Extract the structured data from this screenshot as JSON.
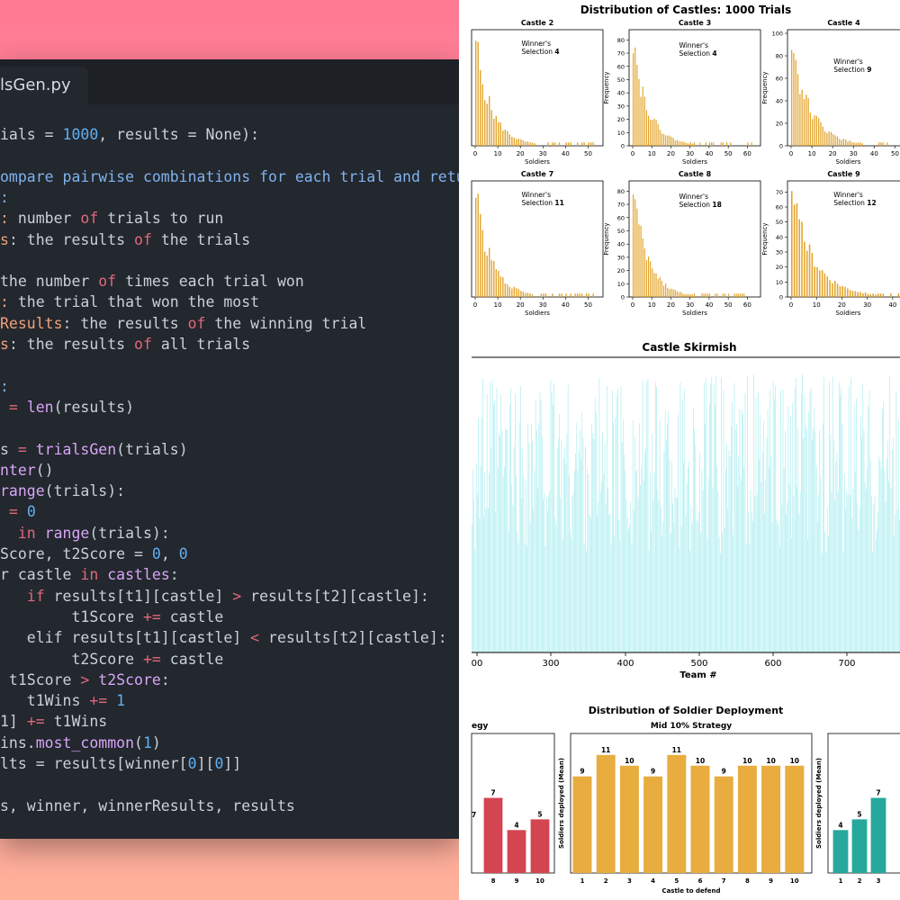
{
  "editor": {
    "tab_label": "lsGen.py",
    "lines": [
      {
        "segs": [
          [
            "pl",
            "ials = "
          ],
          [
            "num",
            "1000"
          ],
          [
            "pl",
            ", results = None):"
          ]
        ]
      },
      {
        "segs": []
      },
      {
        "segs": [
          [
            "dc",
            "ompare pairwise combinations for each trial and retu"
          ]
        ]
      },
      {
        "segs": [
          [
            "dc",
            ":"
          ]
        ]
      },
      {
        "segs": [
          [
            "pr",
            ": "
          ],
          [
            "pl",
            "number "
          ],
          [
            "kw",
            "of"
          ],
          [
            "pl",
            " trials to run"
          ]
        ]
      },
      {
        "segs": [
          [
            "pr",
            "s"
          ],
          [
            "pl",
            ": the results "
          ],
          [
            "kw",
            "of"
          ],
          [
            "pl",
            " the trials"
          ]
        ]
      },
      {
        "segs": []
      },
      {
        "segs": [
          [
            "pl",
            "the number "
          ],
          [
            "kw",
            "of"
          ],
          [
            "pl",
            " times each trial won"
          ]
        ]
      },
      {
        "segs": [
          [
            "pr",
            ": "
          ],
          [
            "pl",
            "the trial that won the most"
          ]
        ]
      },
      {
        "segs": [
          [
            "pr",
            "Results"
          ],
          [
            "pl",
            ": the results "
          ],
          [
            "kw",
            "of"
          ],
          [
            "pl",
            " the winning trial"
          ]
        ]
      },
      {
        "segs": [
          [
            "pr",
            "s"
          ],
          [
            "pl",
            ": the results "
          ],
          [
            "kw",
            "of"
          ],
          [
            "pl",
            " all trials"
          ]
        ]
      },
      {
        "segs": []
      },
      {
        "segs": [
          [
            "dc",
            ":"
          ]
        ]
      },
      {
        "segs": [
          [
            "op",
            " = "
          ],
          [
            "fn",
            "len"
          ],
          [
            "pl",
            "(results)"
          ]
        ]
      },
      {
        "segs": []
      },
      {
        "segs": [
          [
            "pl",
            "s "
          ],
          [
            "op",
            "="
          ],
          [
            "fn",
            " trialsGen"
          ],
          [
            "pl",
            "(trials)"
          ]
        ]
      },
      {
        "segs": [
          [
            "fn",
            "nter"
          ],
          [
            "pl",
            "()"
          ]
        ]
      },
      {
        "segs": [
          [
            "fn",
            "range"
          ],
          [
            "pl",
            "(trials):"
          ]
        ]
      },
      {
        "segs": [
          [
            "op",
            " = "
          ],
          [
            "num",
            "0"
          ]
        ]
      },
      {
        "segs": [
          [
            "kw",
            "  in "
          ],
          [
            "fn",
            "range"
          ],
          [
            "pl",
            "(trials):"
          ]
        ]
      },
      {
        "segs": [
          [
            "pl",
            "Score, t2Score = "
          ],
          [
            "num",
            "0"
          ],
          [
            "pl",
            ", "
          ],
          [
            "num",
            "0"
          ]
        ]
      },
      {
        "segs": [
          [
            "pl",
            "r castle "
          ],
          [
            "kw",
            "in"
          ],
          [
            "fn",
            " castles"
          ],
          [
            "pl",
            ":"
          ]
        ]
      },
      {
        "segs": [
          [
            "kw",
            "   if"
          ],
          [
            "pl",
            " results[t1][castle] "
          ],
          [
            "op",
            ">"
          ],
          [
            "pl",
            " results[t2][castle]:"
          ]
        ]
      },
      {
        "segs": [
          [
            "pl",
            "        t1Score "
          ],
          [
            "op",
            "+="
          ],
          [
            "pl",
            " castle"
          ]
        ]
      },
      {
        "segs": [
          [
            "pl",
            "   elif results[t1][castle] "
          ],
          [
            "op",
            "<"
          ],
          [
            "pl",
            " results[t2][castle]:"
          ]
        ]
      },
      {
        "segs": [
          [
            "pl",
            "        t2Score "
          ],
          [
            "op",
            "+="
          ],
          [
            "pl",
            " castle"
          ]
        ]
      },
      {
        "segs": [
          [
            "pl",
            " t1Score "
          ],
          [
            "op",
            ">"
          ],
          [
            "fn",
            " t2Score"
          ],
          [
            "pl",
            ":"
          ]
        ]
      },
      {
        "segs": [
          [
            "pl",
            "   t1Wins "
          ],
          [
            "op",
            "+="
          ],
          [
            "num",
            " 1"
          ]
        ]
      },
      {
        "segs": [
          [
            "pl",
            "1] "
          ],
          [
            "op",
            "+="
          ],
          [
            "pl",
            " t1Wins"
          ]
        ]
      },
      {
        "segs": [
          [
            "pl",
            "ins."
          ],
          [
            "fn",
            "most_common"
          ],
          [
            "pl",
            "("
          ],
          [
            "num",
            "1"
          ],
          [
            "pl",
            ")"
          ]
        ]
      },
      {
        "segs": [
          [
            "pl",
            "lts = results[winner["
          ],
          [
            "num",
            "0"
          ],
          [
            "pl",
            "]["
          ],
          [
            "num",
            "0"
          ],
          [
            "pl",
            "]]"
          ]
        ]
      },
      {
        "segs": []
      },
      {
        "segs": [
          [
            "pl",
            "s, winner, winnerResults, results"
          ]
        ]
      }
    ]
  },
  "figure1": {
    "title": "Distribution of Castles: 1000 Trials",
    "xlabel": "Soldiers",
    "ylabel": "Frequency",
    "panels": [
      {
        "title": "Castle 2",
        "winner": "4",
        "xticks": [
          "0",
          "10",
          "20",
          "30",
          "40",
          "50"
        ],
        "yticks": [],
        "max": 0
      },
      {
        "title": "Castle 3",
        "winner": "4",
        "xticks": [
          "0",
          "10",
          "20",
          "30",
          "40",
          "50",
          "60"
        ],
        "yticks": [
          "0",
          "10",
          "20",
          "30",
          "40",
          "50",
          "60",
          "70",
          "80"
        ],
        "max": 85
      },
      {
        "title": "Castle 4",
        "winner": "9",
        "xticks": [
          "0",
          "10",
          "20",
          "30",
          "40",
          "50"
        ],
        "yticks": [
          "0",
          "20",
          "40",
          "60",
          "80",
          "100"
        ],
        "max": 100
      },
      {
        "title": "Castle 7",
        "winner": "11",
        "xticks": [
          "0",
          "10",
          "20",
          "30",
          "40",
          "50"
        ],
        "yticks": [],
        "max": 0
      },
      {
        "title": "Castle 8",
        "winner": "18",
        "xticks": [
          "0",
          "10",
          "20",
          "30",
          "40",
          "50",
          "60"
        ],
        "yticks": [
          "0",
          "10",
          "20",
          "30",
          "40",
          "50",
          "60",
          "70",
          "80"
        ],
        "max": 85
      },
      {
        "title": "Castle 9",
        "winner": "12",
        "xticks": [
          "0",
          "10",
          "20",
          "30",
          "40"
        ],
        "yticks": [
          "0",
          "10",
          "20",
          "30",
          "40",
          "50",
          "60",
          "70"
        ],
        "max": 75
      }
    ],
    "winner_label": "Winner's",
    "selection_label": "Selection"
  },
  "figure2": {
    "title": "Castle Skirmish",
    "xlabel": "Team #",
    "xticks": [
      "00",
      "300",
      "400",
      "500",
      "600",
      "700"
    ],
    "color": "#aeeef0"
  },
  "figure3": {
    "title": "Distribution of Soldier Deployment",
    "panel_left_title": "egy",
    "panel_mid_title": "Mid 10% Strategy",
    "ylabel": "Soldiers deployed (Mean)",
    "xlabel": "Castle to defend",
    "left_bars": {
      "categories": [
        "8",
        "9",
        "10"
      ],
      "values": [
        7,
        4,
        5
      ],
      "partial_label": "7",
      "color": "#d44552"
    },
    "mid_bars": {
      "categories": [
        "1",
        "2",
        "3",
        "4",
        "5",
        "6",
        "7",
        "8",
        "9",
        "10"
      ],
      "values": [
        9,
        11,
        10,
        9,
        11,
        10,
        9,
        10,
        10,
        10
      ],
      "color": "#e8ac3f"
    },
    "right_bars": {
      "categories": [
        "1",
        "2",
        "3"
      ],
      "values": [
        4,
        5,
        7
      ],
      "color": "#26a89d"
    }
  },
  "chart_data": [
    {
      "type": "bar",
      "title": "Castle 3",
      "xlabel": "Soldiers",
      "ylabel": "Frequency",
      "ylim": [
        0,
        85
      ]
    },
    {
      "type": "bar",
      "title": "Mid 10% Strategy",
      "categories": [
        "1",
        "2",
        "3",
        "4",
        "5",
        "6",
        "7",
        "8",
        "9",
        "10"
      ],
      "values": [
        9,
        11,
        10,
        9,
        11,
        10,
        9,
        10,
        10,
        10
      ],
      "xlabel": "Castle to defend",
      "ylabel": "Soldiers deployed (Mean)"
    },
    {
      "type": "bar",
      "categories": [
        "1",
        "2",
        "3"
      ],
      "values": [
        4,
        5,
        7
      ]
    },
    {
      "type": "bar",
      "categories": [
        "8",
        "9",
        "10"
      ],
      "values": [
        7,
        4,
        5
      ]
    }
  ]
}
